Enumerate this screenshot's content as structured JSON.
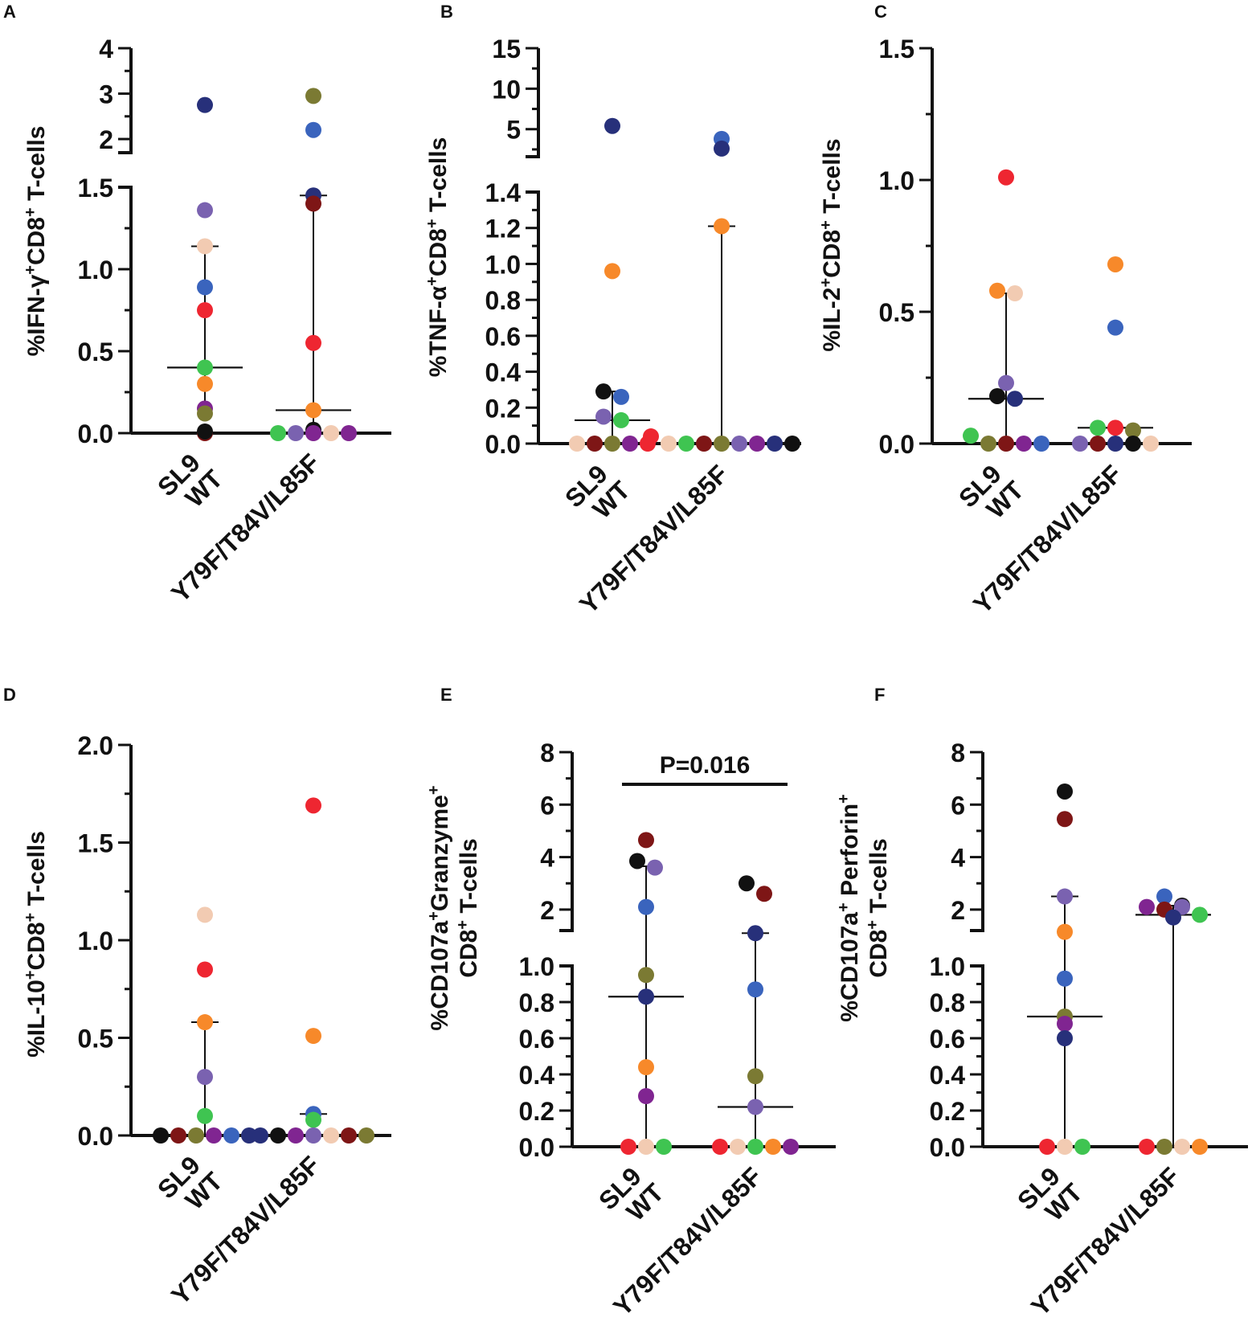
{
  "chart_data": [
    {
      "panel": "A",
      "type": "scatter",
      "ylabel": "%IFN-γ+CD8+ T-cells",
      "ylabel_parts": [
        "%IFN-γ",
        "+",
        "CD8",
        "+",
        " T-cells"
      ],
      "categories": [
        "SL9\nWT",
        "Y79F/T84V/L85F"
      ],
      "category_lines": [
        [
          "SL9",
          "WT"
        ],
        [
          "Y79F/T84V/L85F"
        ]
      ],
      "ylim_lower": [
        0,
        1.5
      ],
      "ylim_upper": [
        1.7,
        4
      ],
      "ticks_lower": [
        0.0,
        0.5,
        1.0,
        1.5
      ],
      "tick_labels_lower": [
        "0.0",
        "0.5",
        "1.0",
        "1.5"
      ],
      "ticks_upper": [
        2,
        3,
        4
      ],
      "tick_labels_upper": [
        "2",
        "3",
        "4"
      ],
      "series": [
        {
          "category": 0,
          "median": 0.4,
          "q1": 0.12,
          "q3": 1.14,
          "points": [
            {
              "y": 2.75,
              "color": "#27307a"
            },
            {
              "y": 1.36,
              "color": "#7a62b0"
            },
            {
              "y": 1.14,
              "color": "#f2cbb2"
            },
            {
              "y": 0.89,
              "color": "#3a64bd"
            },
            {
              "y": 0.75,
              "color": "#ee2631"
            },
            {
              "y": 0.4,
              "color": "#3fc451"
            },
            {
              "y": 0.3,
              "color": "#f7892a"
            },
            {
              "y": 0.15,
              "color": "#802591"
            },
            {
              "y": 0.12,
              "color": "#7b7a33"
            },
            {
              "y": 0.0,
              "color": "#7e1616"
            },
            {
              "y": 0.01,
              "color": "#111111"
            }
          ]
        },
        {
          "category": 1,
          "median": 0.14,
          "q1": 0.02,
          "q3": 1.45,
          "points": [
            {
              "y": 2.95,
              "color": "#7b7a33"
            },
            {
              "y": 2.2,
              "color": "#3a64bd"
            },
            {
              "y": 1.45,
              "color": "#27307a"
            },
            {
              "y": 1.4,
              "color": "#7e1616"
            },
            {
              "y": 0.55,
              "color": "#ee2631"
            },
            {
              "y": 0.14,
              "color": "#f7892a"
            },
            {
              "y": 0.02,
              "color": "#111111"
            },
            {
              "y": 0.0,
              "color": "#3fc451"
            },
            {
              "y": 0.0,
              "color": "#7a62b0"
            },
            {
              "y": 0.0,
              "color": "#802591"
            },
            {
              "y": 0.0,
              "color": "#f2cbb2"
            },
            {
              "y": 0.0,
              "color": "#802591"
            }
          ]
        }
      ]
    },
    {
      "panel": "B",
      "type": "scatter",
      "ylabel": "%TNF-α+CD8+ T-cells",
      "ylabel_parts": [
        "%TNF-α",
        "+",
        "CD8",
        "+",
        " T-cells"
      ],
      "categories": [
        "SL9\nWT",
        "Y79F/T84V/L85F"
      ],
      "category_lines": [
        [
          "SL9",
          "WT"
        ],
        [
          "Y79F/T84V/L85F"
        ]
      ],
      "ylim_lower": [
        0,
        1.4
      ],
      "ylim_upper": [
        1.6,
        15
      ],
      "ticks_lower": [
        0.0,
        0.2,
        0.4,
        0.6,
        0.8,
        1.0,
        1.2,
        1.4
      ],
      "tick_labels_lower": [
        "0.0",
        "0.2",
        "0.4",
        "0.6",
        "0.8",
        "1.0",
        "1.2",
        "1.4"
      ],
      "ticks_upper": [
        5,
        10,
        15
      ],
      "tick_labels_upper": [
        "5",
        "10",
        "15"
      ],
      "series": [
        {
          "category": 0,
          "median": 0.13,
          "q1": 0.0,
          "q3": 0.29,
          "points": [
            {
              "y": 5.4,
              "color": "#27307a"
            },
            {
              "y": 0.96,
              "color": "#f7892a"
            },
            {
              "y": 0.29,
              "color": "#111111"
            },
            {
              "y": 0.26,
              "color": "#3a64bd"
            },
            {
              "y": 0.15,
              "color": "#7a62b0"
            },
            {
              "y": 0.13,
              "color": "#3fc451"
            },
            {
              "y": 0.0,
              "color": "#f2cbb2"
            },
            {
              "y": 0.0,
              "color": "#7e1616"
            },
            {
              "y": 0.0,
              "color": "#7b7a33"
            },
            {
              "y": 0.0,
              "color": "#802591"
            },
            {
              "y": 0.0,
              "color": "#ee2631"
            }
          ]
        },
        {
          "category": 1,
          "median": 0.0,
          "q1": 0.0,
          "q3": 1.21,
          "points": [
            {
              "y": 3.8,
              "color": "#3a64bd"
            },
            {
              "y": 2.6,
              "color": "#27307a"
            },
            {
              "y": 1.21,
              "color": "#f7892a"
            },
            {
              "y": 0.04,
              "color": "#ee2631"
            },
            {
              "y": 0.0,
              "color": "#f2cbb2"
            },
            {
              "y": 0.0,
              "color": "#3fc451"
            },
            {
              "y": 0.0,
              "color": "#7e1616"
            },
            {
              "y": 0.0,
              "color": "#7b7a33"
            },
            {
              "y": 0.0,
              "color": "#7a62b0"
            },
            {
              "y": 0.0,
              "color": "#802591"
            },
            {
              "y": 0.0,
              "color": "#27307a"
            },
            {
              "y": 0.0,
              "color": "#111111"
            }
          ]
        }
      ]
    },
    {
      "panel": "C",
      "type": "scatter",
      "ylabel": "%IL-2+CD8+ T-cells",
      "ylabel_parts": [
        "%IL-2",
        "+",
        "CD8",
        "+",
        " T-cells"
      ],
      "categories": [
        "SL9\nWT",
        "Y79F/T84V/L85F"
      ],
      "category_lines": [
        [
          "SL9",
          "WT"
        ],
        [
          "Y79F/T84V/L85F"
        ]
      ],
      "ylim": [
        0,
        1.5
      ],
      "ticks": [
        0.0,
        0.5,
        1.0,
        1.5
      ],
      "tick_labels": [
        "0.0",
        "0.5",
        "1.0",
        "1.5"
      ],
      "series": [
        {
          "category": 0,
          "median": 0.17,
          "q1": 0.0,
          "q3": 0.57,
          "points": [
            {
              "y": 1.01,
              "color": "#ee2631"
            },
            {
              "y": 0.58,
              "color": "#f7892a"
            },
            {
              "y": 0.57,
              "color": "#f2cbb2"
            },
            {
              "y": 0.23,
              "color": "#7a62b0"
            },
            {
              "y": 0.18,
              "color": "#111111"
            },
            {
              "y": 0.17,
              "color": "#27307a"
            },
            {
              "y": 0.03,
              "color": "#3fc451"
            },
            {
              "y": 0.0,
              "color": "#7b7a33"
            },
            {
              "y": 0.0,
              "color": "#7e1616"
            },
            {
              "y": 0.0,
              "color": "#802591"
            },
            {
              "y": 0.0,
              "color": "#3a64bd"
            }
          ]
        },
        {
          "category": 1,
          "median": 0.06,
          "q1": 0.0,
          "q3": 0.06,
          "points": [
            {
              "y": 0.68,
              "color": "#f7892a"
            },
            {
              "y": 0.44,
              "color": "#3a64bd"
            },
            {
              "y": 0.06,
              "color": "#3fc451"
            },
            {
              "y": 0.06,
              "color": "#ee2631"
            },
            {
              "y": 0.05,
              "color": "#7b7a33"
            },
            {
              "y": 0.0,
              "color": "#7a62b0"
            },
            {
              "y": 0.0,
              "color": "#7e1616"
            },
            {
              "y": 0.0,
              "color": "#27307a"
            },
            {
              "y": 0.0,
              "color": "#111111"
            },
            {
              "y": 0.0,
              "color": "#f2cbb2"
            }
          ]
        }
      ]
    },
    {
      "panel": "D",
      "type": "scatter",
      "ylabel": "%IL-10+CD8+ T-cells",
      "ylabel_parts": [
        "%IL-10",
        "+",
        "CD8",
        "+",
        " T-cells"
      ],
      "categories": [
        "SL9\nWT",
        "Y79F/T84V/L85F"
      ],
      "category_lines": [
        [
          "SL9",
          "WT"
        ],
        [
          "Y79F/T84V/L85F"
        ]
      ],
      "ylim": [
        0,
        2.0
      ],
      "ticks": [
        0.0,
        0.5,
        1.0,
        1.5,
        2.0
      ],
      "tick_labels": [
        "0.0",
        "0.5",
        "1.0",
        "1.5",
        "2.0"
      ],
      "series": [
        {
          "category": 0,
          "median": 0.0,
          "q1": 0.0,
          "q3": 0.58,
          "points": [
            {
              "y": 1.13,
              "color": "#f2cbb2"
            },
            {
              "y": 0.85,
              "color": "#ee2631"
            },
            {
              "y": 0.58,
              "color": "#f7892a"
            },
            {
              "y": 0.3,
              "color": "#7a62b0"
            },
            {
              "y": 0.1,
              "color": "#3fc451"
            },
            {
              "y": 0.0,
              "color": "#111111"
            },
            {
              "y": 0.0,
              "color": "#7e1616"
            },
            {
              "y": 0.0,
              "color": "#7b7a33"
            },
            {
              "y": 0.0,
              "color": "#802591"
            },
            {
              "y": 0.0,
              "color": "#3a64bd"
            },
            {
              "y": 0.0,
              "color": "#27307a"
            }
          ]
        },
        {
          "category": 1,
          "median": 0.0,
          "q1": 0.0,
          "q3": 0.11,
          "points": [
            {
              "y": 1.69,
              "color": "#ee2631"
            },
            {
              "y": 0.51,
              "color": "#f7892a"
            },
            {
              "y": 0.11,
              "color": "#3a64bd"
            },
            {
              "y": 0.08,
              "color": "#3fc451"
            },
            {
              "y": 0.0,
              "color": "#27307a"
            },
            {
              "y": 0.0,
              "color": "#111111"
            },
            {
              "y": 0.0,
              "color": "#802591"
            },
            {
              "y": 0.0,
              "color": "#7a62b0"
            },
            {
              "y": 0.0,
              "color": "#f2cbb2"
            },
            {
              "y": 0.0,
              "color": "#7e1616"
            },
            {
              "y": 0.0,
              "color": "#7b7a33"
            }
          ]
        }
      ]
    },
    {
      "panel": "E",
      "type": "scatter",
      "ylabel": "%CD107a+Granzyme+ CD8+ T-cells",
      "ylabel_line1_parts": [
        "%CD107a",
        "+",
        "Granzyme",
        "+"
      ],
      "ylabel_line2_parts": [
        "CD8",
        "+",
        " T-cells"
      ],
      "categories": [
        "SL9\nWT",
        "Y79F/T84V/L85F"
      ],
      "category_lines": [
        [
          "SL9",
          "WT"
        ],
        [
          "Y79F/T84V/L85F"
        ]
      ],
      "ylim_lower": [
        0,
        1.0
      ],
      "ylim_upper": [
        1.2,
        8
      ],
      "ticks_lower": [
        0.0,
        0.2,
        0.4,
        0.6,
        0.8,
        1.0
      ],
      "tick_labels_lower": [
        "0.0",
        "0.2",
        "0.4",
        "0.6",
        "0.8",
        "1.0"
      ],
      "ticks_upper": [
        2,
        4,
        6,
        8
      ],
      "tick_labels_upper": [
        "2",
        "4",
        "6",
        "8"
      ],
      "significance": "P=0.016",
      "series": [
        {
          "category": 0,
          "median": 0.83,
          "q1": 0.0,
          "q3": 3.65,
          "points": [
            {
              "y": 4.65,
              "color": "#7e1616"
            },
            {
              "y": 3.85,
              "color": "#111111"
            },
            {
              "y": 3.6,
              "color": "#7a62b0"
            },
            {
              "y": 2.1,
              "color": "#3a64bd"
            },
            {
              "y": 0.95,
              "color": "#7b7a33"
            },
            {
              "y": 0.83,
              "color": "#27307a"
            },
            {
              "y": 0.44,
              "color": "#f7892a"
            },
            {
              "y": 0.28,
              "color": "#802591"
            },
            {
              "y": 0.0,
              "color": "#ee2631"
            },
            {
              "y": 0.0,
              "color": "#f2cbb2"
            },
            {
              "y": 0.0,
              "color": "#3fc451"
            }
          ]
        },
        {
          "category": 1,
          "median": 0.22,
          "q1": 0.0,
          "q3": 1.1,
          "points": [
            {
              "y": 3.0,
              "color": "#111111"
            },
            {
              "y": 2.6,
              "color": "#7e1616"
            },
            {
              "y": 1.1,
              "color": "#27307a"
            },
            {
              "y": 0.87,
              "color": "#3a64bd"
            },
            {
              "y": 0.39,
              "color": "#7b7a33"
            },
            {
              "y": 0.22,
              "color": "#7a62b0"
            },
            {
              "y": 0.0,
              "color": "#ee2631"
            },
            {
              "y": 0.0,
              "color": "#f2cbb2"
            },
            {
              "y": 0.0,
              "color": "#3fc451"
            },
            {
              "y": 0.0,
              "color": "#f7892a"
            },
            {
              "y": 0.0,
              "color": "#802591"
            }
          ]
        }
      ]
    },
    {
      "panel": "F",
      "type": "scatter",
      "ylabel": "%CD107a+ Perforin+ CD8+ T-cells",
      "ylabel_line1_parts": [
        "%CD107a",
        "+",
        " Perforin",
        "+"
      ],
      "ylabel_line2_parts": [
        "CD8",
        "+",
        " T-cells"
      ],
      "categories": [
        "SL9\nWT",
        "Y79F/T84V/L85F"
      ],
      "category_lines": [
        [
          "SL9",
          "WT"
        ],
        [
          "Y79F/T84V/L85F"
        ]
      ],
      "ylim_lower": [
        0,
        1.0
      ],
      "ylim_upper": [
        1.2,
        8
      ],
      "ticks_lower": [
        0.0,
        0.2,
        0.4,
        0.6,
        0.8,
        1.0
      ],
      "tick_labels_lower": [
        "0.0",
        "0.2",
        "0.4",
        "0.6",
        "0.8",
        "1.0"
      ],
      "ticks_upper": [
        2,
        4,
        6,
        8
      ],
      "tick_labels_upper": [
        "2",
        "4",
        "6",
        "8"
      ],
      "series": [
        {
          "category": 0,
          "median": 0.72,
          "q1": 0.0,
          "q3": 2.5,
          "points": [
            {
              "y": 6.5,
              "color": "#111111"
            },
            {
              "y": 5.45,
              "color": "#7e1616"
            },
            {
              "y": 2.5,
              "color": "#7a62b0"
            },
            {
              "y": 1.15,
              "color": "#f7892a"
            },
            {
              "y": 0.93,
              "color": "#3a64bd"
            },
            {
              "y": 0.72,
              "color": "#7b7a33"
            },
            {
              "y": 0.68,
              "color": "#802591"
            },
            {
              "y": 0.6,
              "color": "#27307a"
            },
            {
              "y": 0.0,
              "color": "#ee2631"
            },
            {
              "y": 0.0,
              "color": "#f2cbb2"
            },
            {
              "y": 0.0,
              "color": "#3fc451"
            }
          ]
        },
        {
          "category": 1,
          "median": 1.8,
          "q1": 0.0,
          "q3": 2.15,
          "points": [
            {
              "y": 2.5,
              "color": "#3a64bd"
            },
            {
              "y": 2.15,
              "color": "#111111"
            },
            {
              "y": 2.1,
              "color": "#802591"
            },
            {
              "y": 2.0,
              "color": "#7e1616"
            },
            {
              "y": 2.1,
              "color": "#7a62b0"
            },
            {
              "y": 1.8,
              "color": "#3fc451"
            },
            {
              "y": 1.7,
              "color": "#27307a"
            },
            {
              "y": 0.0,
              "color": "#ee2631"
            },
            {
              "y": 0.0,
              "color": "#7b7a33"
            },
            {
              "y": 0.0,
              "color": "#f2cbb2"
            },
            {
              "y": 0.0,
              "color": "#f7892a"
            }
          ]
        }
      ]
    }
  ]
}
